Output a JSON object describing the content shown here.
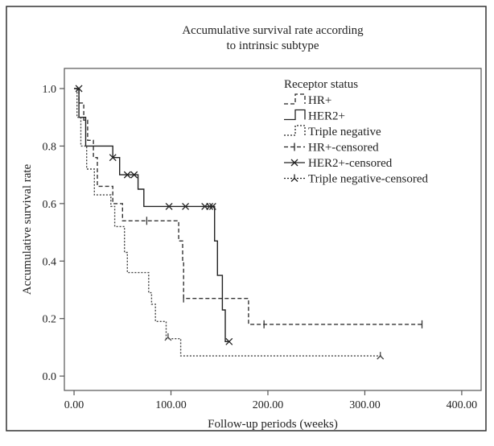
{
  "chart_data": {
    "type": "line",
    "title_lines": [
      "Accumulative survival rate according",
      "to intrinsic subtype"
    ],
    "xlabel": "Follow-up periods (weeks)",
    "ylabel": "Accumulative survival rate",
    "xlim": [
      -10,
      420
    ],
    "ylim": [
      -0.05,
      1.07
    ],
    "x_ticks": [
      0,
      100,
      200,
      300,
      400
    ],
    "x_tick_labels": [
      "0.00",
      "100.00",
      "200.00",
      "300.00",
      "400.00"
    ],
    "y_ticks": [
      0.0,
      0.2,
      0.4,
      0.6,
      0.8,
      1.0
    ],
    "y_tick_labels": [
      "0.0",
      "0.2",
      "0.4",
      "0.6",
      "0.8",
      "1.0"
    ],
    "grid": false,
    "legend_position": "top-right",
    "legend_title": "Receptor status",
    "legend_entries": [
      {
        "label": "HR+",
        "kind": "step",
        "dash": "5,3"
      },
      {
        "label": "HER2+",
        "kind": "step",
        "dash": ""
      },
      {
        "label": "Triple negative",
        "kind": "step",
        "dash": "2,2"
      },
      {
        "label": "HR+-censored",
        "kind": "censor",
        "dash": "5,3",
        "marker": "plus"
      },
      {
        "label": "HER2+-censored",
        "kind": "censor",
        "dash": "",
        "marker": "x"
      },
      {
        "label": "Triple negative-censored",
        "kind": "censor",
        "dash": "2,2",
        "marker": "y"
      }
    ],
    "series": [
      {
        "name": "HR+",
        "style": {
          "dash": "5,3",
          "color": "#333333"
        },
        "steps": [
          [
            0,
            1.0
          ],
          [
            5,
            1.0
          ],
          [
            5,
            0.95
          ],
          [
            10,
            0.95
          ],
          [
            10,
            0.89
          ],
          [
            14,
            0.89
          ],
          [
            14,
            0.82
          ],
          [
            20,
            0.82
          ],
          [
            20,
            0.76
          ],
          [
            24,
            0.76
          ],
          [
            24,
            0.66
          ],
          [
            40,
            0.66
          ],
          [
            40,
            0.6
          ],
          [
            50,
            0.6
          ],
          [
            50,
            0.54
          ],
          [
            108,
            0.54
          ],
          [
            108,
            0.47
          ],
          [
            112,
            0.47
          ],
          [
            112,
            0.4
          ],
          [
            113,
            0.4
          ],
          [
            113,
            0.27
          ],
          [
            180,
            0.27
          ],
          [
            180,
            0.18
          ],
          [
            360,
            0.18
          ]
        ],
        "censored": [
          [
            75,
            0.54
          ],
          [
            113,
            0.27
          ],
          [
            196,
            0.18
          ],
          [
            359,
            0.18
          ]
        ]
      },
      {
        "name": "HER2+",
        "style": {
          "dash": "",
          "color": "#222222"
        },
        "steps": [
          [
            0,
            1.0
          ],
          [
            5,
            1.0
          ],
          [
            5,
            0.9
          ],
          [
            12,
            0.9
          ],
          [
            12,
            0.8
          ],
          [
            25,
            0.8
          ],
          [
            25,
            0.8
          ],
          [
            40,
            0.8
          ],
          [
            40,
            0.76
          ],
          [
            47,
            0.76
          ],
          [
            47,
            0.7
          ],
          [
            66,
            0.7
          ],
          [
            66,
            0.65
          ],
          [
            72,
            0.65
          ],
          [
            72,
            0.59
          ],
          [
            145,
            0.59
          ],
          [
            145,
            0.47
          ],
          [
            148,
            0.47
          ],
          [
            148,
            0.35
          ],
          [
            153,
            0.35
          ],
          [
            153,
            0.23
          ],
          [
            156,
            0.23
          ],
          [
            156,
            0.12
          ],
          [
            160,
            0.12
          ]
        ],
        "censored": [
          [
            5,
            1.0
          ],
          [
            40,
            0.76
          ],
          [
            55,
            0.7
          ],
          [
            62,
            0.7
          ],
          [
            98,
            0.59
          ],
          [
            115,
            0.59
          ],
          [
            135,
            0.59
          ],
          [
            140,
            0.59
          ],
          [
            143,
            0.59
          ],
          [
            160,
            0.12
          ]
        ]
      },
      {
        "name": "Triple negative",
        "style": {
          "dash": "2,2",
          "color": "#444444"
        },
        "steps": [
          [
            0,
            1.0
          ],
          [
            3,
            1.0
          ],
          [
            3,
            0.9
          ],
          [
            7,
            0.9
          ],
          [
            7,
            0.8
          ],
          [
            13,
            0.8
          ],
          [
            13,
            0.72
          ],
          [
            21,
            0.72
          ],
          [
            21,
            0.63
          ],
          [
            38,
            0.63
          ],
          [
            38,
            0.59
          ],
          [
            42,
            0.59
          ],
          [
            42,
            0.52
          ],
          [
            52,
            0.52
          ],
          [
            52,
            0.43
          ],
          [
            55,
            0.43
          ],
          [
            55,
            0.36
          ],
          [
            77,
            0.36
          ],
          [
            77,
            0.29
          ],
          [
            80,
            0.29
          ],
          [
            80,
            0.25
          ],
          [
            84,
            0.25
          ],
          [
            84,
            0.19
          ],
          [
            95,
            0.19
          ],
          [
            95,
            0.13
          ],
          [
            110,
            0.13
          ],
          [
            110,
            0.07
          ],
          [
            318,
            0.07
          ]
        ],
        "censored": [
          [
            97,
            0.135
          ],
          [
            316,
            0.07
          ]
        ]
      }
    ]
  }
}
